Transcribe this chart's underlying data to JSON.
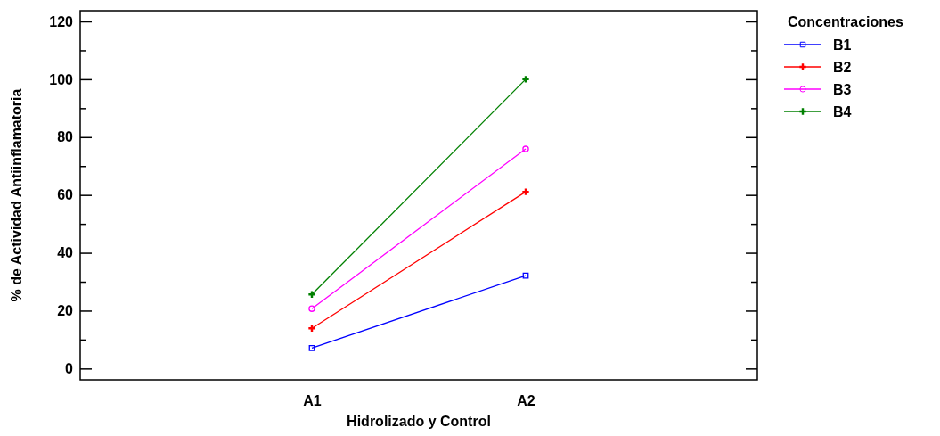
{
  "chart_data": {
    "type": "line",
    "xlabel": "Hidrolizado y Control",
    "ylabel": "% de Actividad Antiinflamatoria",
    "legend_title": "Concentraciones",
    "legend": "top right",
    "categories": [
      "A1",
      "A2"
    ],
    "ylim": [
      -3.9,
      123.7
    ],
    "yticks": [
      0,
      {
        "value": 10,
        "label": null
      },
      20,
      {
        "value": 30,
        "label": null
      },
      40,
      {
        "value": 50,
        "label": null
      },
      60,
      {
        "value": 70,
        "label": null
      },
      80,
      {
        "value": 90,
        "label": null
      },
      100,
      {
        "value": 110,
        "label": null
      },
      120
    ],
    "series": [
      {
        "name": "B1",
        "color": "#0000ff",
        "marker": "square",
        "values": [
          7.1,
          32.1
        ]
      },
      {
        "name": "B2",
        "color": "#ff0000",
        "marker": "cross",
        "values": [
          13.9,
          61.1
        ]
      },
      {
        "name": "B3",
        "color": "#ff00ff",
        "marker": "circle",
        "values": [
          20.7,
          75.9
        ]
      },
      {
        "name": "B4",
        "color": "#008000",
        "marker": "cross",
        "values": [
          25.6,
          100
        ]
      }
    ]
  }
}
